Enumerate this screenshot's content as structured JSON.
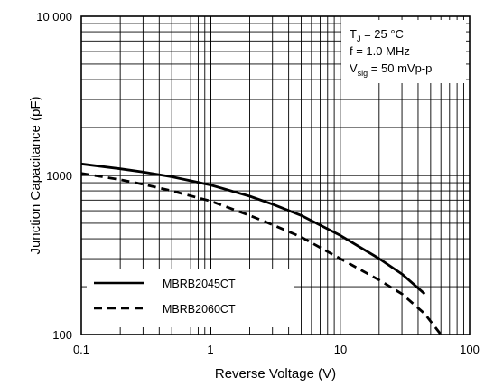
{
  "chart_data": {
    "type": "line",
    "title": "",
    "xlabel": "Reverse Voltage (V)",
    "ylabel": "Junction Capacitance (pF)",
    "xscale": "log",
    "yscale": "log",
    "xlim": [
      0.1,
      100
    ],
    "ylim": [
      100,
      10000
    ],
    "grid": true,
    "x_tick_labels": [
      "0.1",
      "1",
      "10",
      "100"
    ],
    "y_tick_labels": [
      "100",
      "1000",
      "10 000"
    ],
    "conditions": {
      "tj_main": "T",
      "tj_sub": "J",
      "tj_value": " = 25 °C",
      "freq": "f = 1.0 MHz",
      "vsig_main": "V",
      "vsig_sub": "sig",
      "vsig_value": " = 50 mVp-p"
    },
    "legend_position": "bottom-left",
    "series": [
      {
        "name": "MBRB2045CT",
        "style": "solid",
        "color": "#000000",
        "x": [
          0.1,
          0.2,
          0.3,
          0.5,
          1,
          2,
          3,
          5,
          10,
          20,
          30,
          45
        ],
        "y": [
          1180,
          1100,
          1050,
          980,
          870,
          740,
          660,
          560,
          420,
          300,
          240,
          180
        ]
      },
      {
        "name": "MBRB2060CT",
        "style": "dashed",
        "color": "#000000",
        "x": [
          0.1,
          0.2,
          0.3,
          0.5,
          1,
          2,
          3,
          5,
          10,
          20,
          30,
          45,
          60
        ],
        "y": [
          1030,
          940,
          880,
          800,
          690,
          560,
          490,
          410,
          300,
          220,
          180,
          135,
          100
        ]
      }
    ]
  }
}
